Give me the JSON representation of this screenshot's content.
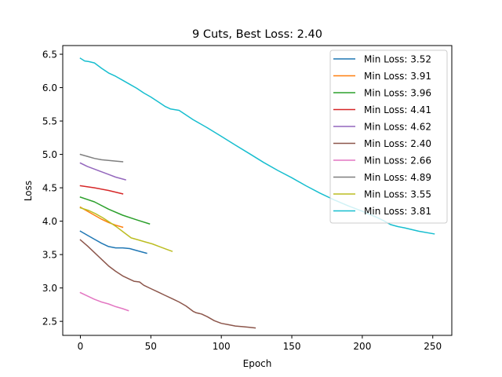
{
  "chart_data": {
    "type": "line",
    "title": "9 Cuts, Best Loss: 2.40",
    "xlabel": "Epoch",
    "ylabel": "Loss",
    "xlim": [
      -12.5,
      263.5
    ],
    "ylim": [
      2.29,
      6.63
    ],
    "xticks": [
      0,
      50,
      100,
      150,
      200,
      250
    ],
    "yticks": [
      2.5,
      3.0,
      3.5,
      4.0,
      4.5,
      5.0,
      5.5,
      6.0,
      6.5
    ],
    "xtick_labels": [
      "0",
      "50",
      "100",
      "150",
      "200",
      "250"
    ],
    "ytick_labels": [
      "2.5",
      "3.0",
      "3.5",
      "4.0",
      "4.5",
      "5.0",
      "5.5",
      "6.0",
      "6.5"
    ],
    "grid": false,
    "legend": "top-right",
    "series": [
      {
        "name": "Min Loss: 3.52",
        "color": "#1f77b4",
        "x": [
          0,
          5,
          10,
          15,
          20,
          25,
          30,
          35,
          40,
          47
        ],
        "y": [
          3.85,
          3.79,
          3.73,
          3.67,
          3.62,
          3.6,
          3.6,
          3.59,
          3.56,
          3.52
        ]
      },
      {
        "name": "Min Loss: 3.91",
        "color": "#ff7f0e",
        "x": [
          0,
          5,
          10,
          15,
          20,
          25,
          30
        ],
        "y": [
          4.21,
          4.15,
          4.09,
          4.03,
          3.98,
          3.94,
          3.91
        ]
      },
      {
        "name": "Min Loss: 3.96",
        "color": "#2ca02c",
        "x": [
          0,
          10,
          20,
          30,
          40,
          49
        ],
        "y": [
          4.36,
          4.29,
          4.18,
          4.09,
          4.02,
          3.96
        ]
      },
      {
        "name": "Min Loss: 4.41",
        "color": "#d62728",
        "x": [
          0,
          10,
          20,
          30
        ],
        "y": [
          4.53,
          4.5,
          4.46,
          4.41
        ]
      },
      {
        "name": "Min Loss: 4.62",
        "color": "#9467bd",
        "x": [
          0,
          5,
          10,
          15,
          20,
          25,
          32
        ],
        "y": [
          4.87,
          4.82,
          4.78,
          4.74,
          4.7,
          4.66,
          4.62
        ]
      },
      {
        "name": "Min Loss: 2.40",
        "color": "#8c564b",
        "x": [
          0,
          5,
          10,
          15,
          20,
          25,
          30,
          35,
          38,
          42,
          45,
          50,
          55,
          60,
          65,
          70,
          75,
          80,
          82,
          86,
          90,
          95,
          100,
          105,
          110,
          115,
          120,
          124
        ],
        "y": [
          3.72,
          3.63,
          3.53,
          3.43,
          3.33,
          3.25,
          3.18,
          3.13,
          3.1,
          3.09,
          3.04,
          2.99,
          2.94,
          2.89,
          2.84,
          2.79,
          2.73,
          2.65,
          2.63,
          2.61,
          2.57,
          2.51,
          2.47,
          2.45,
          2.43,
          2.42,
          2.41,
          2.4
        ]
      },
      {
        "name": "Min Loss: 2.66",
        "color": "#e377c2",
        "x": [
          0,
          5,
          10,
          15,
          20,
          25,
          30,
          34
        ],
        "y": [
          2.93,
          2.88,
          2.83,
          2.79,
          2.76,
          2.72,
          2.69,
          2.66
        ]
      },
      {
        "name": "Min Loss: 4.89",
        "color": "#7f7f7f",
        "x": [
          0,
          5,
          10,
          15,
          20,
          25,
          30
        ],
        "y": [
          5.0,
          4.97,
          4.94,
          4.92,
          4.91,
          4.9,
          4.89
        ]
      },
      {
        "name": "Min Loss: 3.55",
        "color": "#bcbd22",
        "x": [
          0,
          6,
          11,
          16,
          21,
          26,
          31,
          36,
          41,
          46,
          51,
          56,
          61,
          65
        ],
        "y": [
          4.2,
          4.16,
          4.11,
          4.05,
          3.98,
          3.91,
          3.83,
          3.75,
          3.72,
          3.69,
          3.66,
          3.62,
          3.58,
          3.55
        ]
      },
      {
        "name": "Min Loss: 3.81",
        "color": "#17becf",
        "x": [
          0,
          3,
          6,
          10,
          15,
          20,
          25,
          30,
          35,
          40,
          45,
          50,
          55,
          60,
          62,
          64,
          67,
          70,
          80,
          90,
          100,
          110,
          120,
          130,
          140,
          150,
          160,
          170,
          180,
          190,
          200,
          210,
          215,
          220,
          225,
          230,
          240,
          251
        ],
        "y": [
          6.44,
          6.4,
          6.39,
          6.37,
          6.29,
          6.22,
          6.17,
          6.11,
          6.05,
          5.99,
          5.92,
          5.86,
          5.79,
          5.72,
          5.7,
          5.68,
          5.67,
          5.66,
          5.52,
          5.4,
          5.27,
          5.14,
          5.01,
          4.88,
          4.76,
          4.65,
          4.53,
          4.42,
          4.32,
          4.23,
          4.15,
          4.06,
          4.01,
          3.95,
          3.92,
          3.9,
          3.85,
          3.81
        ]
      }
    ]
  }
}
